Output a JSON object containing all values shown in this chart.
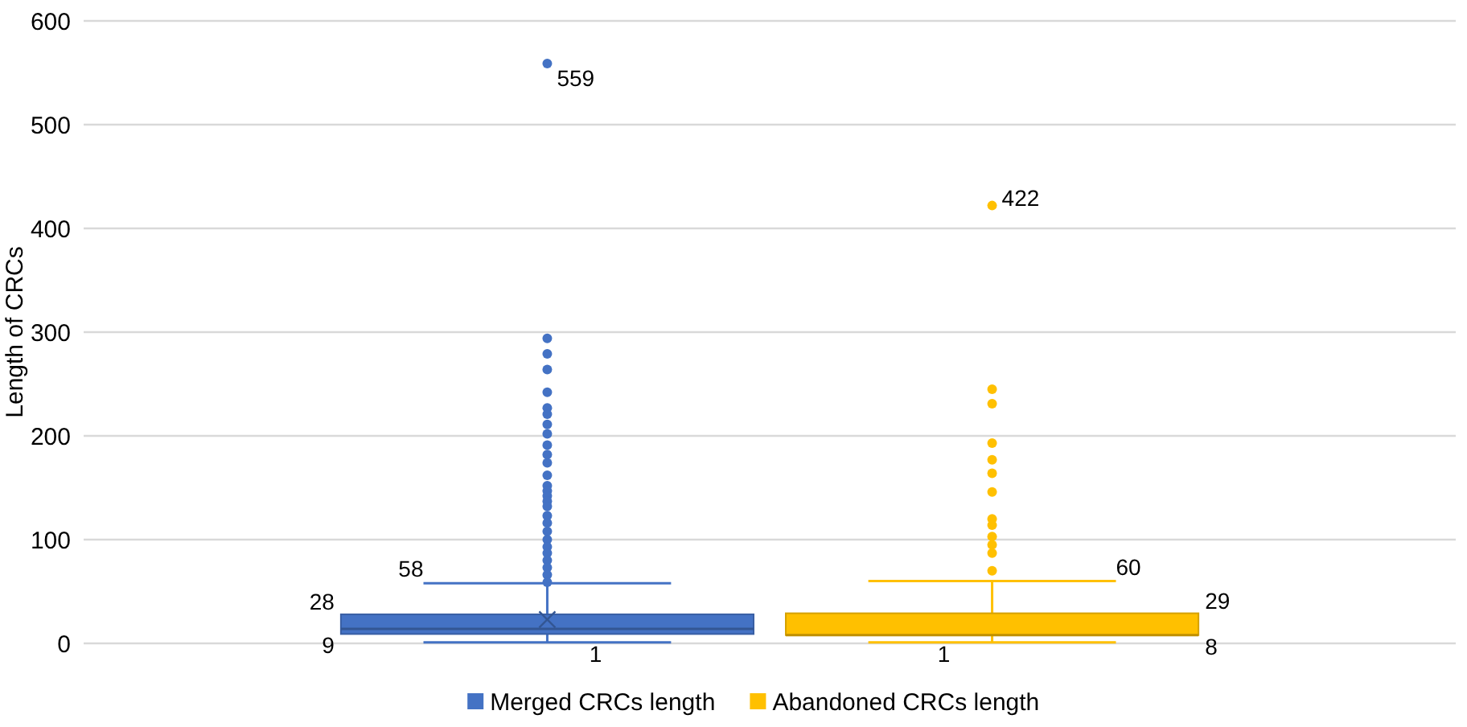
{
  "chart_data": {
    "type": "box",
    "categories": [
      null
    ],
    "ylabel": "Length of CRCs",
    "ylim": [
      0,
      600
    ],
    "yticks": [
      0,
      100,
      200,
      300,
      400,
      500,
      600
    ],
    "grid": "y",
    "legend": "bottom",
    "series": [
      {
        "name": "Merged CRCs length",
        "color": "#4472c4",
        "boxes": [
          {
            "low": 1,
            "q1": 9,
            "median": 14,
            "q3": 28,
            "high": 58,
            "mean": 23,
            "outliers": [
              559,
              294,
              279,
              264,
              242,
              227,
              221,
              211,
              202,
              191,
              182,
              174,
              162,
              152,
              147,
              142,
              137,
              132,
              123,
              116,
              108,
              100,
              93,
              87,
              80,
              73,
              66,
              59
            ]
          }
        ]
      },
      {
        "name": "Abandoned CRCs length",
        "color": "#ffc000",
        "boxes": [
          {
            "low": 1,
            "q1": 8,
            "median": 8,
            "q3": 29,
            "high": 60,
            "outliers": [
              422,
              245,
              231,
              193,
              177,
              164,
              146,
              120,
              114,
              103,
              95,
              87,
              70
            ]
          }
        ]
      }
    ],
    "annotations": [
      "559",
      "58",
      "28",
      "9",
      "1",
      "422",
      "60",
      "29",
      "8",
      "1"
    ]
  }
}
